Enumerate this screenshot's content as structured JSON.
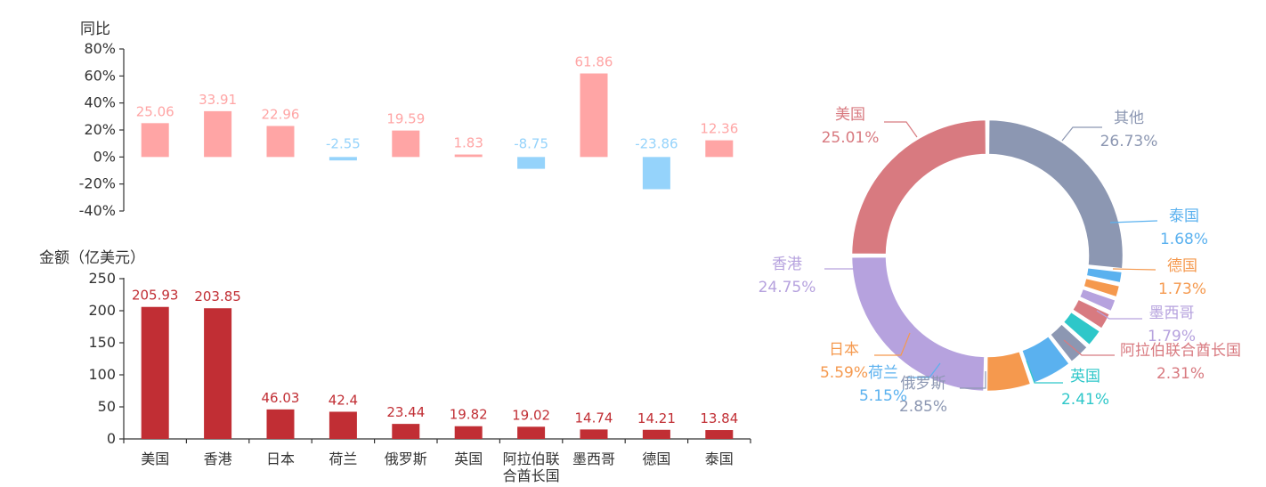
{
  "chart_data": [
    {
      "type": "bar",
      "ylabel": "同比",
      "ylim": [
        -40,
        80
      ],
      "yticks": [
        "80%",
        "60%",
        "40%",
        "20%",
        "0%",
        "-20%",
        "-40%"
      ],
      "categories": [
        "美国",
        "香港",
        "日本",
        "荷兰",
        "俄罗斯",
        "英国",
        "阿拉伯联合酋长国",
        "墨西哥",
        "德国",
        "泰国"
      ],
      "values": [
        25.06,
        33.91,
        22.96,
        -2.55,
        19.59,
        1.83,
        -8.75,
        61.86,
        -23.86,
        12.36
      ],
      "labels": [
        "25.06",
        "33.91",
        "22.96",
        "-2.55",
        "19.59",
        "1.83",
        "-8.75",
        "61.86",
        "-23.86",
        "12.36"
      ],
      "positive_color": "#ffa5a5",
      "negative_color": "#95d3fb",
      "grid": false
    },
    {
      "type": "bar",
      "ylabel": "金额（亿美元）",
      "ylim": [
        0,
        250
      ],
      "yticks": [
        "250",
        "200",
        "150",
        "100",
        "50",
        "0"
      ],
      "categories": [
        "美国",
        "香港",
        "日本",
        "荷兰",
        "俄罗斯",
        "英国",
        "阿拉伯联合酋长国",
        "墨西哥",
        "德国",
        "泰国"
      ],
      "category_lines": [
        [
          "美国"
        ],
        [
          "香港"
        ],
        [
          "日本"
        ],
        [
          "荷兰"
        ],
        [
          "俄罗斯"
        ],
        [
          "英国"
        ],
        [
          "阿拉伯联",
          "合酋长国"
        ],
        [
          "墨西哥"
        ],
        [
          "德国"
        ],
        [
          "泰国"
        ]
      ],
      "values": [
        205.93,
        203.85,
        46.03,
        42.4,
        23.44,
        19.82,
        19.02,
        14.74,
        14.21,
        13.84
      ],
      "labels": [
        "205.93",
        "203.85",
        "46.03",
        "42.4",
        "23.44",
        "19.82",
        "19.02",
        "14.74",
        "14.21",
        "13.84"
      ],
      "color": "#c12e34",
      "grid": false
    },
    {
      "type": "pie",
      "style": "donut",
      "slices": [
        {
          "name": "其他",
          "value": 26.73,
          "pct": "26.73%",
          "color": "#8c97b2"
        },
        {
          "name": "泰国",
          "value": 1.68,
          "pct": "1.68%",
          "color": "#5ab1ef"
        },
        {
          "name": "德国",
          "value": 1.73,
          "pct": "1.73%",
          "color": "#f5994e"
        },
        {
          "name": "墨西哥",
          "value": 1.79,
          "pct": "1.79%",
          "color": "#b6a2de"
        },
        {
          "name": "阿拉伯联合酋长国",
          "value": 2.31,
          "pct": "2.31%",
          "color": "#d87a80"
        },
        {
          "name": "英国",
          "value": 2.41,
          "pct": "2.41%",
          "color": "#2ec7c9"
        },
        {
          "name": "俄罗斯",
          "value": 2.85,
          "pct": "2.85%",
          "color": "#8c97b2"
        },
        {
          "name": "荷兰",
          "value": 5.15,
          "pct": "5.15%",
          "color": "#5ab1ef"
        },
        {
          "name": "日本",
          "value": 5.59,
          "pct": "5.59%",
          "color": "#f5994e"
        },
        {
          "name": "香港",
          "value": 24.75,
          "pct": "24.75%",
          "color": "#b6a2de"
        },
        {
          "name": "美国",
          "value": 25.01,
          "pct": "25.01%",
          "color": "#d87a80"
        }
      ]
    }
  ]
}
